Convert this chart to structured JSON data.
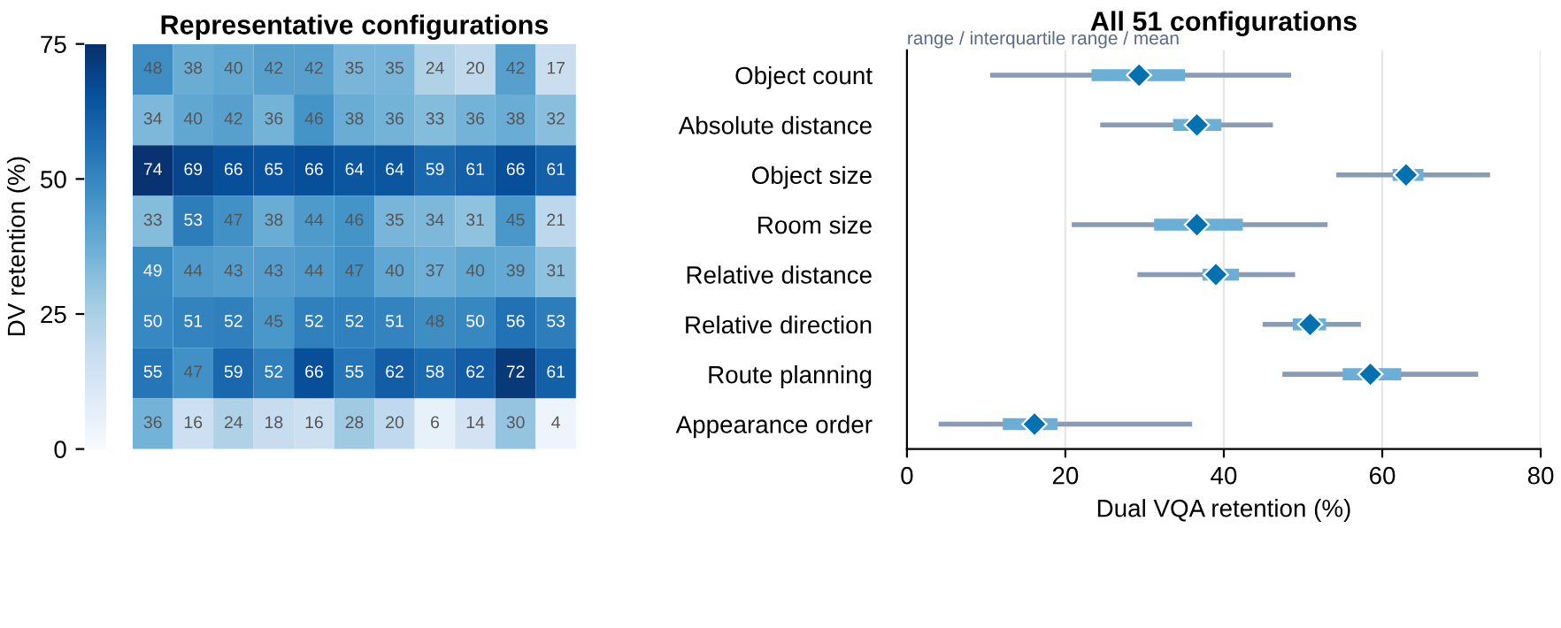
{
  "chart_data": [
    {
      "type": "heatmap",
      "title": "Representative configurations",
      "clabel": "DV retention (%)",
      "categories": [
        null,
        null,
        null,
        null,
        null,
        null,
        null,
        null,
        null,
        null,
        null
      ],
      "y_categories": [
        null,
        null,
        null,
        null,
        null,
        null,
        null,
        null
      ],
      "cells": [
        [
          48,
          38,
          40,
          42,
          42,
          35,
          35,
          24,
          20,
          42,
          17
        ],
        [
          34,
          40,
          42,
          36,
          46,
          38,
          36,
          33,
          36,
          38,
          32
        ],
        [
          74,
          69,
          66,
          65,
          66,
          64,
          64,
          59,
          61,
          66,
          61
        ],
        [
          33,
          53,
          47,
          38,
          44,
          46,
          35,
          34,
          31,
          45,
          21
        ],
        [
          49,
          44,
          43,
          43,
          44,
          47,
          40,
          37,
          40,
          39,
          31
        ],
        [
          50,
          51,
          52,
          45,
          52,
          52,
          51,
          48,
          50,
          56,
          53
        ],
        [
          55,
          47,
          59,
          52,
          66,
          55,
          62,
          58,
          62,
          72,
          61
        ],
        [
          36,
          16,
          24,
          18,
          16,
          28,
          20,
          6,
          14,
          30,
          4
        ]
      ],
      "clim": [
        0,
        75
      ],
      "cticks": [
        0,
        25,
        50,
        75
      ],
      "data_labels": true
    },
    {
      "type": "box",
      "orientation": "horizontal",
      "title": "All 51 configurations",
      "subtitle": "range / interquartile range / mean",
      "xlabel": "Dual VQA retention (%)",
      "color": "#6baed6",
      "categories": [
        "Object count",
        "Absolute distance",
        "Object size",
        "Room size",
        "Relative distance",
        "Relative direction",
        "Route planning",
        "Appearance order"
      ],
      "boxes": [
        {
          "low": 10.5,
          "q1": 23.3,
          "q3": 35.1,
          "high": 48.5,
          "mean": 29.3
        },
        {
          "low": 24.4,
          "q1": 33.6,
          "q3": 39.7,
          "high": 46.2,
          "mean": 36.6
        },
        {
          "low": 54.2,
          "q1": 61.3,
          "q3": 65.2,
          "high": 73.6,
          "mean": 63.0
        },
        {
          "low": 20.8,
          "q1": 31.2,
          "q3": 42.4,
          "high": 53.1,
          "mean": 36.6
        },
        {
          "low": 29.1,
          "q1": 37.3,
          "q3": 41.9,
          "high": 49.0,
          "mean": 39.0
        },
        {
          "low": 44.9,
          "q1": 48.7,
          "q3": 52.9,
          "high": 57.3,
          "mean": 50.9
        },
        {
          "low": 47.4,
          "q1": 55.0,
          "q3": 62.4,
          "high": 72.1,
          "mean": 58.5
        },
        {
          "low": 4.0,
          "q1": 12.1,
          "q3": 19.0,
          "high": 36.0,
          "mean": 16.1
        }
      ],
      "xlim": [
        0,
        80
      ],
      "xticks": [
        0,
        20,
        40,
        60,
        80
      ],
      "grid": "x"
    }
  ]
}
